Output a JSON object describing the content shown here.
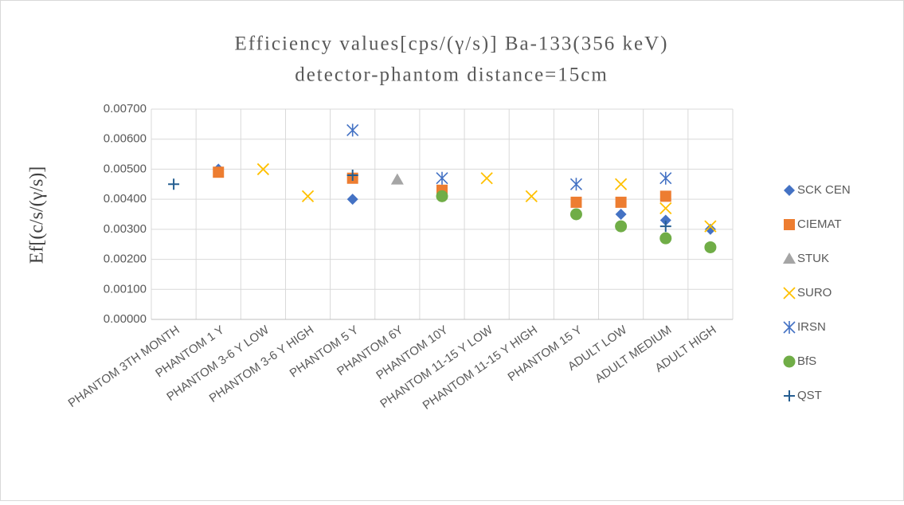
{
  "chart_data": {
    "type": "scatter",
    "title": "Efficiency values[cps/(γ/s)] Ba-133(356 keV)",
    "subtitle": "detector-phantom distance=15cm",
    "y_label": "Ef[(c/s/(γ/s)]",
    "categories": [
      "PHANTOM 3TH MONTH",
      "PHANTOM 1 Y",
      "PHANTOM 3-6 Y LOW",
      "PHANTOM 3-6 Y HIGH",
      "PHANTOM 5 Y",
      "PHANTOM 6Y",
      "PHANTOM 10Y",
      "PHANTOM 11-15 Y LOW",
      "PHANTOM 11-15 Y HIGH",
      "PHANTOM 15 Y",
      "ADULT LOW",
      "ADULT MEDIUM",
      "ADULT HIGH"
    ],
    "series": [
      {
        "name": "SCK CEN",
        "color": "#4472c4",
        "marker": "diamond",
        "values": [
          null,
          0.005,
          null,
          null,
          0.004,
          null,
          null,
          null,
          null,
          null,
          0.0035,
          0.0033,
          0.003
        ]
      },
      {
        "name": "CIEMAT",
        "color": "#ed7d31",
        "marker": "square",
        "values": [
          null,
          0.0049,
          null,
          null,
          0.0047,
          null,
          0.0043,
          null,
          null,
          0.0039,
          0.0039,
          0.0041,
          null
        ]
      },
      {
        "name": "STUK",
        "color": "#a5a5a5",
        "marker": "triangle",
        "values": [
          null,
          null,
          null,
          null,
          null,
          0.00465,
          null,
          null,
          null,
          null,
          null,
          null,
          null
        ]
      },
      {
        "name": "SURO",
        "color": "#ffc000",
        "marker": "x",
        "values": [
          null,
          null,
          0.005,
          0.0041,
          null,
          null,
          null,
          0.0047,
          0.0041,
          null,
          0.0045,
          0.0037,
          0.0031
        ]
      },
      {
        "name": "IRSN",
        "color": "#4472c4",
        "marker": "asterisk",
        "values": [
          null,
          null,
          null,
          null,
          0.0063,
          null,
          0.0047,
          null,
          null,
          0.0045,
          null,
          0.0047,
          null
        ]
      },
      {
        "name": "BfS",
        "color": "#70ad47",
        "marker": "circle",
        "values": [
          null,
          null,
          null,
          null,
          null,
          null,
          0.0041,
          null,
          null,
          0.0035,
          0.0031,
          0.0027,
          0.0024
        ]
      },
      {
        "name": "QST",
        "color": "#255e91",
        "marker": "plus",
        "values": [
          0.0045,
          null,
          null,
          null,
          0.0048,
          null,
          null,
          null,
          null,
          null,
          null,
          0.0031,
          null
        ]
      }
    ],
    "ylim": [
      0,
      0.007
    ],
    "yticks": [
      {
        "value": 0,
        "label": "0.00000"
      },
      {
        "value": 0.001,
        "label": "0.00100"
      },
      {
        "value": 0.002,
        "label": "0.00200"
      },
      {
        "value": 0.003,
        "label": "0.00300"
      },
      {
        "value": 0.004,
        "label": "0.00400"
      },
      {
        "value": 0.005,
        "label": "0.00500"
      },
      {
        "value": 0.006,
        "label": "0.00600"
      },
      {
        "value": 0.007,
        "label": "0.00700"
      }
    ],
    "grid": true,
    "legend": "right"
  }
}
